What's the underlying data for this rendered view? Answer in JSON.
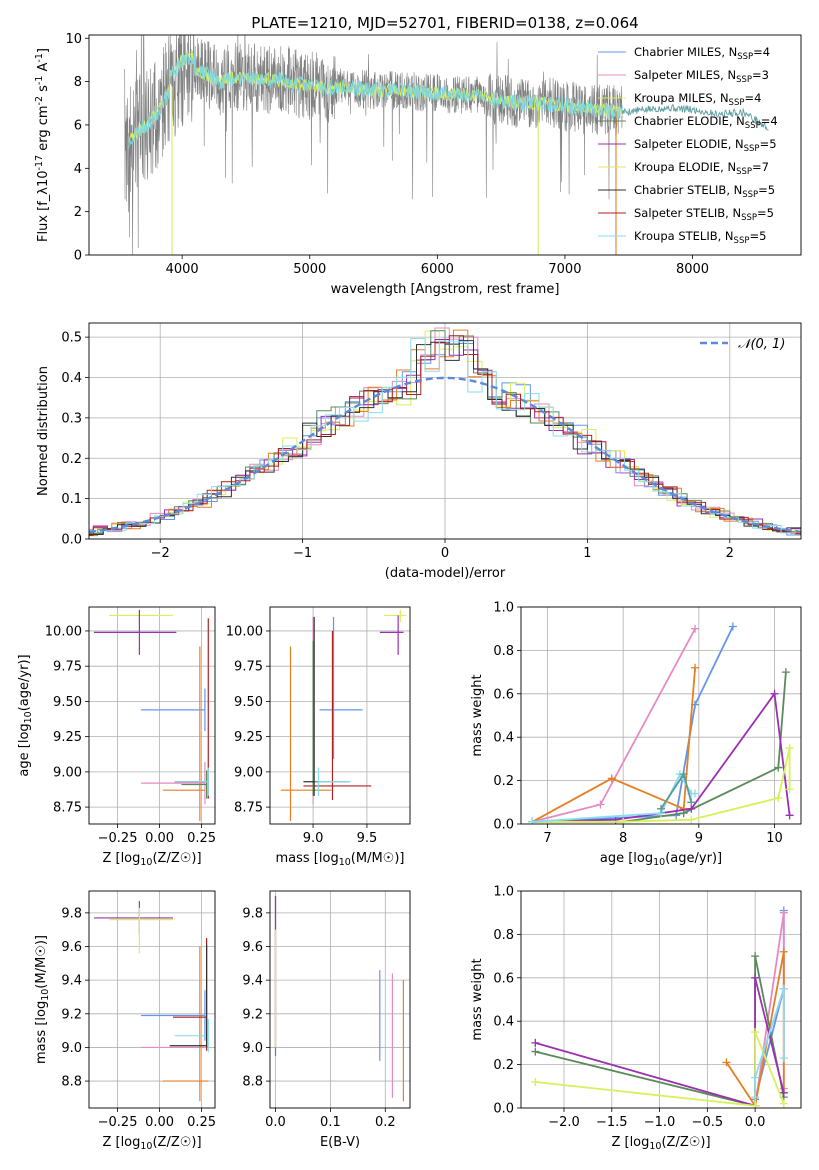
{
  "figure": {
    "title": "PLATE=1210, MJD=52701, FIBERID=0138, z=0.064"
  },
  "palette": [
    "#6495ed",
    "#e78ac3",
    "#d8f05a",
    "#5a8a5a",
    "#9b30b0",
    "#f0e060",
    "#303030",
    "#b02020",
    "#88ddee"
  ],
  "chart_data": [
    {
      "id": "spectrum",
      "type": "line",
      "title": "PLATE=1210, MJD=52701, FIBERID=0138, z=0.064",
      "xlabel": "wavelength [Angstrom, rest frame]",
      "ylabel": "Flux [f_λ10^{-17} erg cm^{-2} s^{-1} A^{-1}]",
      "xlim": [
        3270,
        8850
      ],
      "ylim": [
        0,
        10.15
      ],
      "xticks": [
        4000,
        5000,
        6000,
        7000,
        8000
      ],
      "yticks": [
        0,
        2,
        4,
        6,
        8,
        10
      ],
      "observed_color": "#808080",
      "continuum": {
        "x": [
          3550,
          3600,
          3700,
          3800,
          3900,
          4000,
          4100,
          4200,
          4300,
          4400,
          4500,
          4700,
          4900,
          5100,
          5300,
          5500,
          5700,
          5900,
          6100,
          6300,
          6500,
          6700,
          6900,
          7100,
          7300,
          7450
        ],
        "y": [
          4.6,
          5.4,
          5.9,
          6.5,
          7.6,
          8.4,
          8.6,
          8.3,
          8.0,
          8.2,
          8.2,
          8.1,
          7.9,
          7.7,
          7.7,
          7.6,
          7.6,
          7.5,
          7.4,
          7.4,
          7.1,
          7.0,
          7.0,
          6.8,
          6.7,
          6.6
        ]
      },
      "noise_range_observed": [
        3550,
        7450
      ],
      "model_extension": {
        "x": [
          7450,
          7800,
          8000,
          8200,
          8400,
          8500,
          8600
        ],
        "y": [
          6.6,
          6.8,
          6.7,
          6.5,
          6.6,
          6.2,
          5.8
        ]
      },
      "legend": [
        {
          "label": "Chabrier MILES, N",
          "sub": "SSP",
          "rest": "=4",
          "color": "#6495ed"
        },
        {
          "label": "Salpeter MILES, N",
          "sub": "SSP",
          "rest": "=3",
          "color": "#e78ac3"
        },
        {
          "label": "Kroupa MILES, N",
          "sub": "SSP",
          "rest": "=4",
          "color": "#d8f05a"
        },
        {
          "label": "Chabrier ELODIE, N",
          "sub": "SSP",
          "rest": "=4",
          "color": "#5a8a5a"
        },
        {
          "label": "Salpeter ELODIE, N",
          "sub": "SSP",
          "rest": "=5",
          "color": "#9b30b0"
        },
        {
          "label": "Kroupa ELODIE, N",
          "sub": "SSP",
          "rest": "=7",
          "color": "#f0e060"
        },
        {
          "label": "Chabrier STELIB, N",
          "sub": "SSP",
          "rest": "=5",
          "color": "#303030"
        },
        {
          "label": "Salpeter STELIB, N",
          "sub": "SSP",
          "rest": "=5",
          "color": "#b02020"
        },
        {
          "label": "Kroupa STELIB, N",
          "sub": "SSP",
          "rest": "=5",
          "color": "#88ddee"
        }
      ]
    },
    {
      "id": "residual-hist",
      "type": "histogram",
      "xlabel": "(data-model)/error",
      "ylabel": "Normed distribution",
      "xlim": [
        -2.5,
        2.5
      ],
      "ylim": [
        0,
        0.535
      ],
      "xticks": [
        -2,
        -1,
        0,
        1,
        2
      ],
      "yticks": [
        0.0,
        0.1,
        0.2,
        0.3,
        0.4,
        0.5
      ],
      "gaussian_label": "𝒩(0, 1)",
      "gaussian_color": "#5b8ad8",
      "bin_width": 0.1,
      "hist_colors": [
        "#6495ed",
        "#e78ac3",
        "#d8f05a",
        "#5a8a5a",
        "#9b30b0",
        "#e67e22",
        "#303030",
        "#b02020",
        "#88ddee"
      ]
    },
    {
      "id": "age-vs-z",
      "type": "errorbar",
      "xlabel": "Z [log10(Z/Z☉)]",
      "ylabel": "age [log10(age/yr)]",
      "xlim": [
        -0.42,
        0.33
      ],
      "ylim": [
        8.63,
        10.17
      ],
      "xticks": [
        -0.25,
        0.0,
        0.25
      ],
      "yticks": [
        8.75,
        9.0,
        9.25,
        9.5,
        9.75,
        10.0
      ],
      "points": [
        {
          "x": 0.27,
          "y": 9.44,
          "xerr": [
            0.38,
            0.0
          ],
          "yerr": [
            0.15,
            0.15
          ],
          "color": "#6495ed"
        },
        {
          "x": 0.27,
          "y": 8.92,
          "xerr": [
            0.38,
            0.0
          ],
          "yerr": [
            0.15,
            0.15
          ],
          "color": "#e78ac3"
        },
        {
          "x": -0.12,
          "y": 10.11,
          "xerr": [
            0.18,
            0.2
          ],
          "yerr": [
            0.06,
            0.04
          ],
          "color": "#d8f05a"
        },
        {
          "x": -0.12,
          "y": 9.99,
          "xerr": [
            0.27,
            0.22
          ],
          "yerr": [
            0.16,
            0.16
          ],
          "color": "#9b30b0"
        },
        {
          "x": 0.24,
          "y": 8.87,
          "xerr": [
            0.22,
            0.03
          ],
          "yerr": [
            0.22,
            1.02
          ],
          "color": "#e67e22"
        },
        {
          "x": 0.29,
          "y": 8.93,
          "xerr": [
            0.2,
            0.0
          ],
          "yerr": [
            0.12,
            1.16
          ],
          "color": "#b02020"
        },
        {
          "x": 0.28,
          "y": 8.91,
          "xerr": [
            0.15,
            0.0
          ],
          "yerr": [
            0.1,
            0.1
          ],
          "color": "#5a8a5a"
        },
        {
          "x": 0.29,
          "y": 8.93,
          "xerr": [
            0.2,
            0.0
          ],
          "yerr": [
            0.1,
            0.1
          ],
          "color": "#88ddee"
        }
      ]
    },
    {
      "id": "age-vs-mass",
      "type": "errorbar",
      "xlabel": "mass [log10(M/M☉)]",
      "ylabel": "",
      "xlim": [
        8.6,
        9.9
      ],
      "ylim": [
        8.63,
        10.17
      ],
      "xticks": [
        9.0,
        9.5
      ],
      "yticks": [
        8.75,
        9.0,
        9.25,
        9.5,
        9.75,
        10.0
      ],
      "points": [
        {
          "x": 9.19,
          "y": 9.44,
          "xerr": [
            0.13,
            0.27
          ],
          "yerr": [
            0.35,
            0.66
          ],
          "color": "#6495ed"
        },
        {
          "x": 9.0,
          "y": 8.92,
          "xerr": [
            0.0,
            0.0
          ],
          "yerr": [
            0.15,
            1.18
          ],
          "color": "#e78ac3"
        },
        {
          "x": 9.81,
          "y": 10.11,
          "xerr": [
            0.15,
            0.05
          ],
          "yerr": [
            0.05,
            0.04
          ],
          "color": "#d8f05a"
        },
        {
          "x": 9.79,
          "y": 9.99,
          "xerr": [
            0.17,
            0.05
          ],
          "yerr": [
            0.16,
            0.12
          ],
          "color": "#9b30b0"
        },
        {
          "x": 8.79,
          "y": 8.87,
          "xerr": [
            0.09,
            0.38
          ],
          "yerr": [
            0.22,
            1.02
          ],
          "color": "#e67e22"
        },
        {
          "x": 9.18,
          "y": 8.9,
          "xerr": [
            0.27,
            0.36
          ],
          "yerr": [
            0.1,
            1.1
          ],
          "color": "#b02020"
        },
        {
          "x": 9.0,
          "y": 8.93,
          "xerr": [
            0.0,
            0.33
          ],
          "yerr": [
            0.1,
            1.0
          ],
          "color": "#5a8a5a"
        },
        {
          "x": 9.05,
          "y": 8.93,
          "xerr": [
            0.0,
            0.3
          ],
          "yerr": [
            0.1,
            0.1
          ],
          "color": "#88ddee"
        },
        {
          "x": 9.01,
          "y": 8.93,
          "xerr": [
            0.1,
            0.0
          ],
          "yerr": [
            0.1,
            1.17
          ],
          "color": "#303030"
        }
      ]
    },
    {
      "id": "weight-vs-age",
      "type": "line",
      "xlabel": "age [log10(age/yr)]",
      "ylabel": "mass weight",
      "xlim": [
        6.65,
        10.35
      ],
      "ylim": [
        0.0,
        1.0
      ],
      "xticks": [
        7,
        8,
        9,
        10
      ],
      "yticks": [
        0.0,
        0.2,
        0.4,
        0.6,
        0.8,
        1.0
      ],
      "series": [
        {
          "color": "#6495ed",
          "x": [
            6.8,
            8.7,
            8.95,
            9.45
          ],
          "y": [
            0.01,
            0.04,
            0.55,
            0.91
          ]
        },
        {
          "color": "#e78ac3",
          "x": [
            6.8,
            7.7,
            8.95
          ],
          "y": [
            0.01,
            0.09,
            0.9
          ]
        },
        {
          "color": "#e67e22",
          "x": [
            6.8,
            7.85,
            8.8,
            8.95
          ],
          "y": [
            0.01,
            0.21,
            0.07,
            0.72
          ]
        },
        {
          "color": "#5a8a5a",
          "x": [
            6.8,
            8.0,
            8.8,
            10.05,
            10.15
          ],
          "y": [
            0.01,
            0.01,
            0.05,
            0.26,
            0.7
          ]
        },
        {
          "color": "#9b30b0",
          "x": [
            6.8,
            7.9,
            8.9,
            10.0,
            10.2
          ],
          "y": [
            0.01,
            0.02,
            0.07,
            0.6,
            0.04
          ]
        },
        {
          "color": "#d8f05a",
          "x": [
            6.8,
            8.0,
            8.9,
            10.05,
            10.2,
            10.2
          ],
          "y": [
            0.01,
            0.01,
            0.02,
            0.12,
            0.35,
            0.16
          ]
        },
        {
          "color": "#88ddee",
          "x": [
            6.8,
            8.5,
            8.75,
            8.9,
            8.95
          ],
          "y": [
            0.01,
            0.05,
            0.23,
            0.14,
            0.14
          ]
        },
        {
          "color": "#5a9a9a",
          "x": [
            8.5,
            8.8,
            8.9
          ],
          "y": [
            0.07,
            0.23,
            0.1
          ]
        }
      ]
    },
    {
      "id": "mass-vs-z",
      "type": "errorbar",
      "xlabel": "Z [log10(Z/Z☉)]",
      "ylabel": "mass [log10(M/M☉)]",
      "xlim": [
        -0.42,
        0.33
      ],
      "ylim": [
        8.64,
        9.93
      ],
      "xticks": [
        -0.25,
        0.0,
        0.25
      ],
      "yticks": [
        8.8,
        9.0,
        9.2,
        9.4,
        9.6,
        9.8
      ],
      "points": [
        {
          "x": 0.27,
          "y": 9.19,
          "xerr": [
            0.38,
            0.0
          ],
          "yerr": [
            0.15,
            0.15
          ],
          "color": "#6495ed"
        },
        {
          "x": 0.27,
          "y": 9.0,
          "xerr": [
            0.38,
            0.0
          ],
          "yerr": [
            0.0,
            0.0
          ],
          "color": "#e78ac3"
        },
        {
          "x": -0.12,
          "y": 9.77,
          "xerr": [
            0.27,
            0.2
          ],
          "yerr": [
            0.1,
            0.1
          ],
          "color": "#9b30b0"
        },
        {
          "x": -0.12,
          "y": 9.76,
          "xerr": [
            0.18,
            0.2
          ],
          "yerr": [
            0.2,
            0.07
          ],
          "color": "#d8f05a"
        },
        {
          "x": 0.24,
          "y": 8.8,
          "xerr": [
            0.22,
            0.05
          ],
          "yerr": [
            0.12,
            0.8
          ],
          "color": "#e67e22"
        },
        {
          "x": 0.28,
          "y": 9.18,
          "xerr": [
            0.2,
            0.0
          ],
          "yerr": [
            0.2,
            0.47
          ],
          "color": "#b02020"
        },
        {
          "x": 0.29,
          "y": 9.07,
          "xerr": [
            0.2,
            0.0
          ],
          "yerr": [
            0.1,
            0.1
          ],
          "color": "#88ddee"
        },
        {
          "x": 0.28,
          "y": 9.01,
          "xerr": [
            0.22,
            0.0
          ],
          "yerr": [
            0.01,
            0.6
          ],
          "color": "#303030"
        }
      ]
    },
    {
      "id": "mass-vs-ebv",
      "type": "errorbar",
      "xlabel": "E(B-V)",
      "ylabel": "",
      "xlim": [
        -0.01,
        0.245
      ],
      "ylim": [
        8.64,
        9.93
      ],
      "xticks": [
        0.0,
        0.1,
        0.2
      ],
      "yticks": [
        8.8,
        9.0,
        9.2,
        9.4,
        9.6,
        9.8
      ],
      "points": [
        {
          "x": 0.0,
          "y": 9.4,
          "xerr": [
            0.0,
            0.0
          ],
          "yerr": [
            0.45,
            0.5
          ],
          "color": "#5a8a5a"
        },
        {
          "x": 0.0,
          "y": 9.5,
          "xerr": [
            0.0,
            0.0
          ],
          "yerr": [
            0.5,
            0.4
          ],
          "color": "#9b30b0"
        },
        {
          "x": 0.0,
          "y": 9.2,
          "xerr": [
            0.0,
            0.0
          ],
          "yerr": [
            0.2,
            0.5
          ],
          "color": "#d8f05a"
        },
        {
          "x": 0.19,
          "y": 9.19,
          "xerr": [
            0.0,
            0.0
          ],
          "yerr": [
            0.27,
            0.27
          ],
          "color": "#6495ed"
        },
        {
          "x": 0.213,
          "y": 9.07,
          "xerr": [
            0.0,
            0.0
          ],
          "yerr": [
            0.37,
            0.37
          ],
          "color": "#e78ac3"
        },
        {
          "x": 0.233,
          "y": 9.05,
          "xerr": [
            0.0,
            0.0
          ],
          "yerr": [
            0.37,
            0.35
          ],
          "color": "#e67e22"
        }
      ]
    },
    {
      "id": "weight-vs-z",
      "type": "line",
      "xlabel": "Z [log10(Z/Z☉)]",
      "ylabel": "mass weight",
      "xlim": [
        -2.45,
        0.48
      ],
      "ylim": [
        0.0,
        1.0
      ],
      "xticks": [
        -2.0,
        -1.5,
        -1.0,
        -0.5,
        0.0
      ],
      "yticks": [
        0.0,
        0.2,
        0.4,
        0.6,
        0.8,
        1.0
      ],
      "series": [
        {
          "color": "#6495ed",
          "x": [
            0.0,
            0.0,
            0.3,
            0.3
          ],
          "y": [
            0.01,
            0.04,
            0.55,
            0.91
          ]
        },
        {
          "color": "#e78ac3",
          "x": [
            0.0,
            0.3,
            0.3
          ],
          "y": [
            0.01,
            0.9,
            0.09
          ]
        },
        {
          "color": "#e67e22",
          "x": [
            -0.3,
            0.0,
            0.3,
            0.3
          ],
          "y": [
            0.21,
            0.01,
            0.72,
            0.07
          ]
        },
        {
          "color": "#5a8a5a",
          "x": [
            -2.3,
            0.0,
            0.0,
            0.3
          ],
          "y": [
            0.26,
            0.01,
            0.7,
            0.05
          ]
        },
        {
          "color": "#9b30b0",
          "x": [
            -2.3,
            0.0,
            0.0,
            0.3
          ],
          "y": [
            0.3,
            0.01,
            0.6,
            0.07
          ]
        },
        {
          "color": "#d8f05a",
          "x": [
            -2.3,
            0.0,
            0.0,
            0.3
          ],
          "y": [
            0.12,
            0.01,
            0.35,
            0.02
          ]
        },
        {
          "color": "#88ddee",
          "x": [
            0.0,
            0.0,
            0.3,
            0.3
          ],
          "y": [
            0.05,
            0.14,
            0.55,
            0.23
          ]
        }
      ]
    }
  ]
}
